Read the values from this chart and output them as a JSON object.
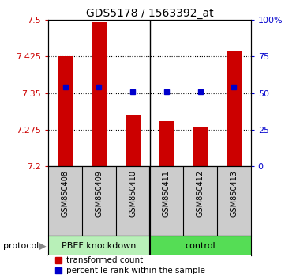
{
  "title": "GDS5178 / 1563392_at",
  "samples": [
    "GSM850408",
    "GSM850409",
    "GSM850410",
    "GSM850411",
    "GSM850412",
    "GSM850413"
  ],
  "bar_values": [
    7.425,
    7.495,
    7.305,
    7.292,
    7.28,
    7.435
  ],
  "percentile_values": [
    54,
    54,
    51,
    51,
    51,
    54
  ],
  "bar_baseline": 7.2,
  "ylim_left": [
    7.2,
    7.5
  ],
  "ylim_right": [
    0,
    100
  ],
  "yticks_left": [
    7.2,
    7.275,
    7.35,
    7.425,
    7.5
  ],
  "yticks_right": [
    0,
    25,
    50,
    75,
    100
  ],
  "ytick_labels_left": [
    "7.2",
    "7.275",
    "7.35",
    "7.425",
    "7.5"
  ],
  "ytick_labels_right": [
    "0",
    "25",
    "50",
    "75",
    "100%"
  ],
  "bar_color": "#cc0000",
  "blue_color": "#0000cc",
  "protocol_label": "protocol",
  "group1_label": "PBEF knockdown",
  "group2_label": "control",
  "group1_color": "#b8f0b8",
  "group2_color": "#55dd55",
  "legend_items": [
    "transformed count",
    "percentile rank within the sample"
  ],
  "background_color": "#ffffff",
  "sample_bg_color": "#cccccc"
}
